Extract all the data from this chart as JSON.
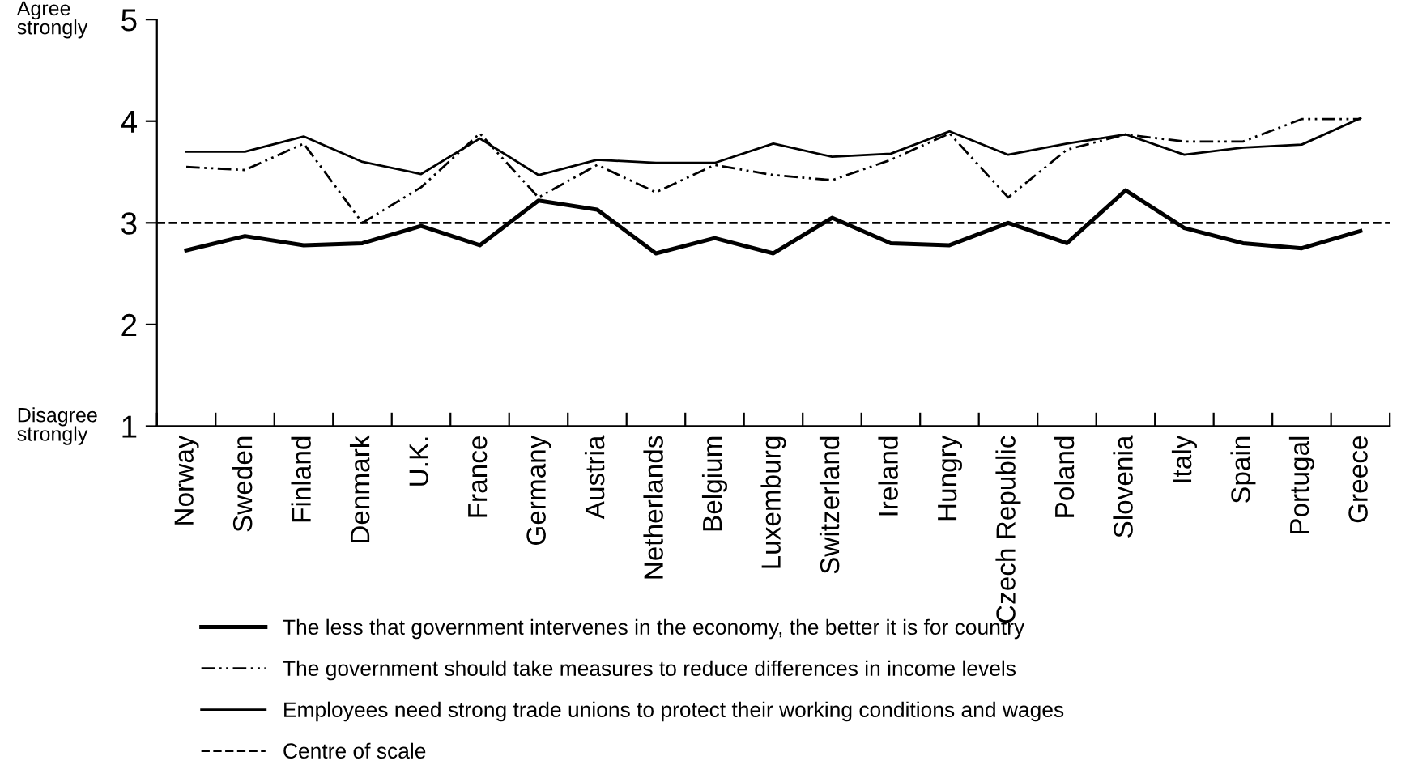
{
  "chart_data": {
    "type": "line",
    "categories": [
      "Norway",
      "Sweden",
      "Finland",
      "Denmark",
      "U.K.",
      "France",
      "Germany",
      "Austria",
      "Netherlands",
      "Belgium",
      "Luxemburg",
      "Switzerland",
      "Ireland",
      "Hungry",
      "Czech Republic",
      "Poland",
      "Slovenia",
      "Italy",
      "Spain",
      "Portugal",
      "Greece"
    ],
    "series": [
      {
        "name": "The less that government intervenes in the economy, the better it is for country",
        "color": "#000000",
        "line_style": "solid",
        "values": [
          2.73,
          2.87,
          2.78,
          2.8,
          2.97,
          2.78,
          3.22,
          3.13,
          2.7,
          2.85,
          2.7,
          3.05,
          2.8,
          2.78,
          3.0,
          2.8,
          3.32,
          2.95,
          2.8,
          2.75,
          2.92
        ]
      },
      {
        "name": "The government should take measures to reduce differences in income levels",
        "color": "#000000",
        "line_style": "dashdot",
        "values": [
          3.55,
          3.52,
          3.78,
          3.0,
          3.35,
          3.88,
          3.25,
          3.57,
          3.3,
          3.57,
          3.47,
          3.42,
          3.62,
          3.88,
          3.25,
          3.72,
          3.87,
          3.8,
          3.8,
          4.02,
          4.02
        ]
      },
      {
        "name": "Employees need strong trade unions to protect their working conditions and wages",
        "color": "#000000",
        "line_style": "solid",
        "values": [
          3.7,
          3.7,
          3.85,
          3.6,
          3.48,
          3.83,
          3.47,
          3.62,
          3.59,
          3.59,
          3.78,
          3.65,
          3.68,
          3.9,
          3.67,
          3.78,
          3.87,
          3.67,
          3.74,
          3.77,
          4.03
        ]
      }
    ],
    "ref_lines": [
      {
        "axis": "y",
        "value": 3,
        "label": "Centre of scale",
        "color": "#000000",
        "line_style": "dashed"
      }
    ],
    "ylim": [
      1,
      5
    ],
    "yticks": [
      1,
      2,
      3,
      4,
      5
    ],
    "annotations": [
      "Agree strongly",
      "Disagree strongly"
    ],
    "grid": false,
    "legend": "bottom",
    "marker": "none"
  }
}
